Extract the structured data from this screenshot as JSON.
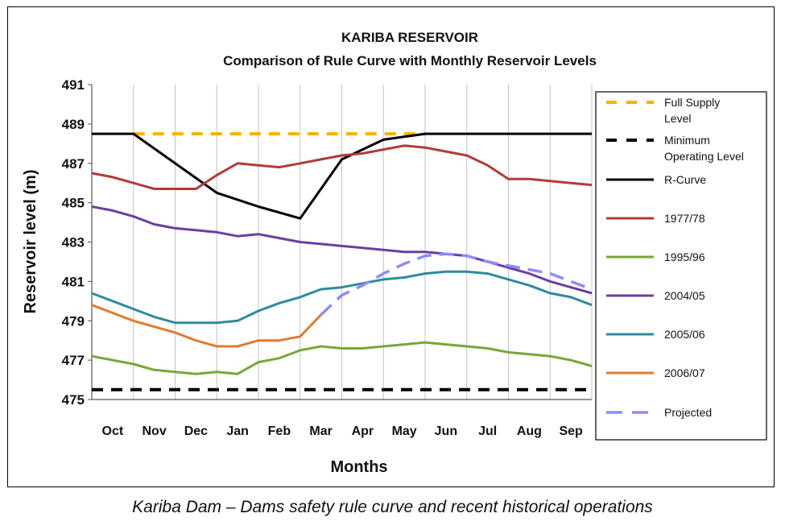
{
  "caption": "Kariba Dam – Dams safety rule curve and recent historical operations",
  "chart_data": {
    "type": "line",
    "title": "KARIBA RESERVOIR",
    "subtitle": "Comparison of Rule Curve with Monthly Reservoir Levels",
    "xlabel": "Months",
    "ylabel": "Reservoir level (m)",
    "ylim": [
      475,
      491
    ],
    "yticks": [
      475,
      477,
      479,
      481,
      483,
      485,
      487,
      489,
      491
    ],
    "categories": [
      "Oct",
      "Nov",
      "Dec",
      "Jan",
      "Feb",
      "Mar",
      "Apr",
      "May",
      "Jun",
      "Jul",
      "Aug",
      "Sep"
    ],
    "grid": "vertical",
    "legend_position": "right",
    "series": [
      {
        "name": "Full Supply Level",
        "color": "#ffb000",
        "style": "dashed",
        "width": 4,
        "x": [
          1.0,
          8.0
        ],
        "y": [
          488.5,
          488.5
        ]
      },
      {
        "name": "Minimum Operating Level",
        "color": "#000000",
        "style": "dashed",
        "width": 4,
        "x": [
          0.0,
          12.0
        ],
        "y": [
          475.5,
          475.5
        ]
      },
      {
        "name": "R-Curve",
        "color": "#000000",
        "style": "solid",
        "width": 3,
        "x": [
          0.0,
          1.0,
          3.0,
          4.0,
          5.0,
          6.0,
          7.0,
          8.0,
          9.0,
          10.0,
          11.0,
          12.0
        ],
        "y": [
          488.5,
          488.5,
          485.5,
          484.8,
          484.2,
          487.2,
          488.2,
          488.5,
          488.5,
          488.5,
          488.5,
          488.5
        ]
      },
      {
        "name": "1977/78",
        "color": "#b33a3a",
        "style": "solid",
        "width": 3,
        "x": [
          0.0,
          0.5,
          1.0,
          1.5,
          2.0,
          2.5,
          3.0,
          3.5,
          4.0,
          4.5,
          5.0,
          5.5,
          6.0,
          6.5,
          7.0,
          7.5,
          8.0,
          8.5,
          9.0,
          9.5,
          10.0,
          10.5,
          11.0,
          11.5,
          12.0
        ],
        "y": [
          486.5,
          486.3,
          486.0,
          485.7,
          485.7,
          485.7,
          486.4,
          487.0,
          486.9,
          486.8,
          487.0,
          487.2,
          487.4,
          487.5,
          487.7,
          487.9,
          487.8,
          487.6,
          487.4,
          486.9,
          486.2,
          486.2,
          486.1,
          486.0,
          485.9
        ]
      },
      {
        "name": "1995/96",
        "color": "#77a83a",
        "style": "solid",
        "width": 3,
        "x": [
          0.0,
          0.5,
          1.0,
          1.5,
          2.0,
          2.5,
          3.0,
          3.5,
          4.0,
          4.5,
          5.0,
          5.5,
          6.0,
          6.5,
          7.0,
          7.5,
          8.0,
          8.5,
          9.0,
          9.5,
          10.0,
          10.5,
          11.0,
          11.5,
          12.0
        ],
        "y": [
          477.2,
          477.0,
          476.8,
          476.5,
          476.4,
          476.3,
          476.4,
          476.3,
          476.9,
          477.1,
          477.5,
          477.7,
          477.6,
          477.6,
          477.7,
          477.8,
          477.9,
          477.8,
          477.7,
          477.6,
          477.4,
          477.3,
          477.2,
          477.0,
          476.7
        ]
      },
      {
        "name": "2004/05",
        "color": "#6b3fa0",
        "style": "solid",
        "width": 3,
        "x": [
          0.0,
          0.5,
          1.0,
          1.5,
          2.0,
          2.5,
          3.0,
          3.5,
          4.0,
          4.5,
          5.0,
          5.5,
          6.0,
          6.5,
          7.0,
          7.5,
          8.0,
          8.5,
          9.0,
          9.5,
          10.0,
          10.5,
          11.0,
          11.5,
          12.0
        ],
        "y": [
          484.8,
          484.6,
          484.3,
          483.9,
          483.7,
          483.6,
          483.5,
          483.3,
          483.4,
          483.2,
          483.0,
          482.9,
          482.8,
          482.7,
          482.6,
          482.5,
          482.5,
          482.4,
          482.3,
          482.0,
          481.7,
          481.4,
          481.0,
          480.7,
          480.4
        ]
      },
      {
        "name": "2005/06",
        "color": "#2e8b9e",
        "style": "solid",
        "width": 3,
        "x": [
          0.0,
          0.5,
          1.0,
          1.5,
          2.0,
          2.5,
          3.0,
          3.5,
          4.0,
          4.5,
          5.0,
          5.5,
          6.0,
          6.5,
          7.0,
          7.5,
          8.0,
          8.5,
          9.0,
          9.5,
          10.0,
          10.5,
          11.0,
          11.5,
          12.0
        ],
        "y": [
          480.4,
          480.0,
          479.6,
          479.2,
          478.9,
          478.9,
          478.9,
          479.0,
          479.5,
          479.9,
          480.2,
          480.6,
          480.7,
          480.9,
          481.1,
          481.2,
          481.4,
          481.5,
          481.5,
          481.4,
          481.1,
          480.8,
          480.4,
          480.2,
          479.8
        ]
      },
      {
        "name": "2006/07",
        "color": "#e07b2e",
        "style": "solid",
        "width": 3,
        "x": [
          0.0,
          0.5,
          1.0,
          1.5,
          2.0,
          2.5,
          3.0,
          3.5,
          4.0,
          4.5,
          5.0,
          5.5
        ],
        "y": [
          479.8,
          479.4,
          479.0,
          478.7,
          478.4,
          478.0,
          477.7,
          477.7,
          478.0,
          478.0,
          478.2,
          479.3
        ]
      },
      {
        "name": "Projected",
        "color": "#8c8cff",
        "style": "dashed",
        "width": 3.5,
        "x": [
          5.5,
          6.0,
          6.5,
          7.0,
          7.5,
          8.0,
          8.5,
          9.0,
          9.5,
          10.0,
          10.5,
          11.0,
          11.5,
          12.0
        ],
        "y": [
          479.3,
          480.3,
          480.8,
          481.4,
          481.9,
          482.3,
          482.4,
          482.3,
          482.0,
          481.8,
          481.6,
          481.4,
          481.0,
          480.6
        ]
      }
    ],
    "legend": [
      {
        "label": [
          "Full Supply",
          "Level"
        ]
      },
      {
        "label": [
          "Minimum",
          "Operating Level"
        ]
      },
      {
        "label": [
          "R-Curve"
        ]
      },
      {
        "label": [
          "1977/78"
        ]
      },
      {
        "label": [
          "1995/96"
        ]
      },
      {
        "label": [
          "2004/05"
        ]
      },
      {
        "label": [
          "2005/06"
        ]
      },
      {
        "label": [
          "2006/07"
        ]
      },
      {
        "label": [
          "Projected"
        ]
      }
    ]
  }
}
